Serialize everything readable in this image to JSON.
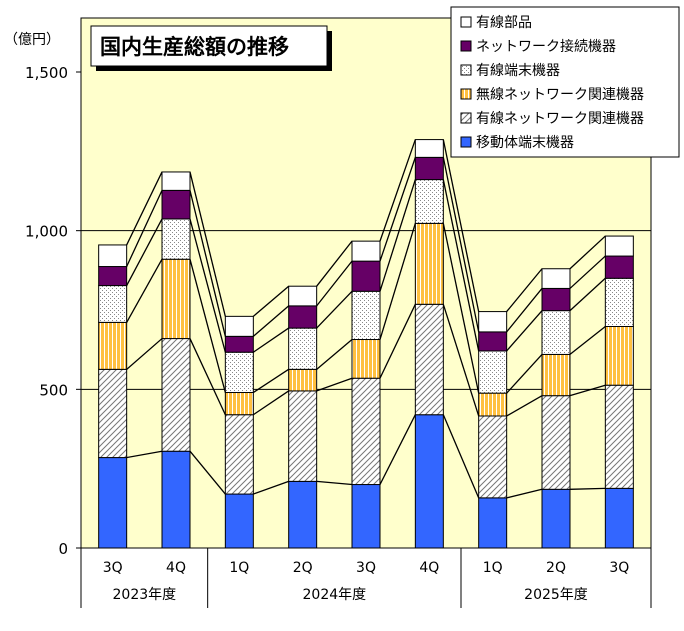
{
  "colors": {
    "plot_bg": "#ffffcc",
    "bar_blue": "#3366ff",
    "bar_orange": "#ffc040",
    "bar_purple": "#660066",
    "connector": "#000000"
  },
  "chart_data": {
    "type": "bar",
    "stacked": true,
    "title": "国内生産総額の推移",
    "ylabel": "（億円）",
    "ylim": [
      0,
      1500
    ],
    "yticks": [
      {
        "value": 0,
        "label": "0"
      },
      {
        "value": 500,
        "label": "500"
      },
      {
        "value": 1000,
        "label": "1,000"
      },
      {
        "value": 1500,
        "label": "1,500"
      }
    ],
    "gridlines": [
      500,
      1000
    ],
    "categories": [
      "3Q",
      "4Q",
      "1Q",
      "2Q",
      "3Q",
      "4Q",
      "1Q",
      "2Q",
      "3Q"
    ],
    "groups": [
      {
        "label": "2023年度",
        "count": 2
      },
      {
        "label": "2024年度",
        "count": 4
      },
      {
        "label": "2025年度",
        "count": 3
      }
    ],
    "legend_position": "top-right",
    "series": [
      {
        "name": "移動体端末機器",
        "pattern": "blue",
        "values": [
          285,
          305,
          170,
          210,
          200,
          420,
          158,
          185,
          188
        ]
      },
      {
        "name": "有線ネットワーク関連機器",
        "pattern": "diagonal",
        "values": [
          278,
          355,
          250,
          285,
          335,
          348,
          258,
          295,
          325
        ]
      },
      {
        "name": "無線ネットワーク関連機器",
        "pattern": "orange",
        "values": [
          148,
          250,
          70,
          68,
          122,
          255,
          72,
          130,
          185
        ]
      },
      {
        "name": "有線端末機器",
        "pattern": "dots",
        "values": [
          116,
          127,
          127,
          130,
          152,
          138,
          133,
          138,
          152
        ]
      },
      {
        "name": "ネットワーク接続機器",
        "pattern": "purple",
        "values": [
          60,
          90,
          50,
          70,
          95,
          70,
          60,
          70,
          70
        ]
      },
      {
        "name": "有線部品",
        "pattern": "white",
        "values": [
          68,
          58,
          63,
          62,
          63,
          56,
          64,
          62,
          63
        ]
      }
    ]
  }
}
